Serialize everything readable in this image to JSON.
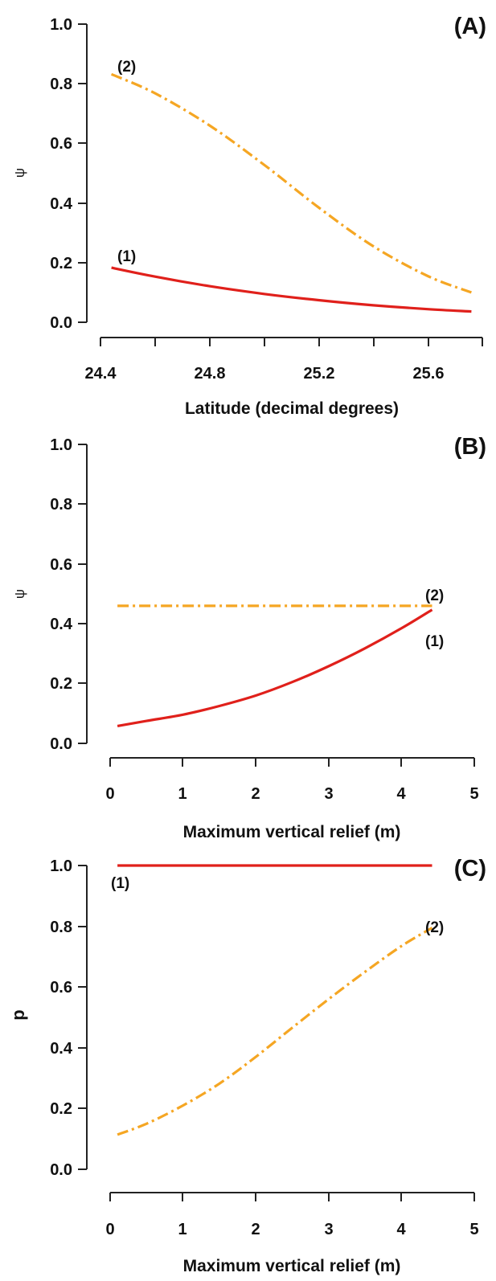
{
  "colors": {
    "series_1": "#e0201b",
    "series_2": "#f5a623",
    "ink": "#111111"
  },
  "chart_data": [
    {
      "type": "line",
      "panel_tag": "(A)",
      "xlabel": "Latitude (decimal degrees)",
      "ylabel": "ψ",
      "xlim": [
        24.4,
        25.8
      ],
      "ylim": [
        0.0,
        1.0
      ],
      "xticks": [
        24.4,
        24.6,
        24.8,
        25.0,
        25.2,
        25.4,
        25.6,
        25.8
      ],
      "xtick_labels": [
        "24.4",
        "",
        "24.8",
        "",
        "25.2",
        "",
        "25.6",
        ""
      ],
      "yticks": [
        0.0,
        0.2,
        0.4,
        0.6,
        0.8,
        1.0
      ],
      "ytick_labels": [
        "0.0",
        "0.2",
        "0.4",
        "0.6",
        "0.8",
        "1.0"
      ],
      "grid": false,
      "series": [
        {
          "label": "(1)",
          "color": "#e0201b",
          "style": "solid",
          "x": [
            24.44,
            24.6,
            24.8,
            25.0,
            25.2,
            25.4,
            25.6,
            25.76
          ],
          "y": [
            0.183,
            0.153,
            0.121,
            0.095,
            0.074,
            0.057,
            0.044,
            0.036
          ]
        },
        {
          "label": "(2)",
          "color": "#f5a623",
          "style": "dashdot",
          "x": [
            24.44,
            24.6,
            24.8,
            25.0,
            25.2,
            25.4,
            25.6,
            25.76
          ],
          "y": [
            0.832,
            0.768,
            0.66,
            0.528,
            0.385,
            0.255,
            0.155,
            0.1
          ]
        }
      ]
    },
    {
      "type": "line",
      "panel_tag": "(B)",
      "xlabel": "Maximum vertical relief (m)",
      "ylabel": "ψ",
      "xlim": [
        0,
        5
      ],
      "ylim": [
        0.0,
        1.0
      ],
      "xticks": [
        0,
        1,
        2,
        3,
        4,
        5
      ],
      "xtick_labels": [
        "0",
        "1",
        "2",
        "3",
        "4",
        "5"
      ],
      "yticks": [
        0.0,
        0.2,
        0.4,
        0.6,
        0.8,
        1.0
      ],
      "ytick_labels": [
        "0.0",
        "0.2",
        "0.4",
        "0.6",
        "0.8",
        "1.0"
      ],
      "grid": false,
      "series": [
        {
          "label": "(1)",
          "color": "#e0201b",
          "style": "solid",
          "x": [
            0.1,
            0.5,
            1.0,
            1.5,
            2.0,
            2.5,
            3.0,
            3.5,
            4.0,
            4.42
          ],
          "y": [
            0.058,
            0.075,
            0.096,
            0.125,
            0.16,
            0.205,
            0.258,
            0.318,
            0.385,
            0.447
          ]
        },
        {
          "label": "(2)",
          "color": "#f5a623",
          "style": "dashdot",
          "x": [
            0.1,
            4.42
          ],
          "y": [
            0.46,
            0.46
          ]
        }
      ]
    },
    {
      "type": "line",
      "panel_tag": "(C)",
      "xlabel": "Maximum vertical relief (m)",
      "ylabel": "p",
      "xlim": [
        0,
        5
      ],
      "ylim": [
        0.0,
        1.0
      ],
      "xticks": [
        0,
        1,
        2,
        3,
        4,
        5
      ],
      "xtick_labels": [
        "0",
        "1",
        "2",
        "3",
        "4",
        "5"
      ],
      "yticks": [
        0.0,
        0.2,
        0.4,
        0.6,
        0.8,
        1.0
      ],
      "ytick_labels": [
        "0.0",
        "0.2",
        "0.4",
        "0.6",
        "0.8",
        "1.0"
      ],
      "grid": false,
      "series": [
        {
          "label": "(1)",
          "color": "#e0201b",
          "style": "solid",
          "x": [
            0.1,
            4.42
          ],
          "y": [
            1.0,
            1.0
          ]
        },
        {
          "label": "(2)",
          "color": "#f5a623",
          "style": "dashdot",
          "x": [
            0.1,
            0.5,
            1.0,
            1.5,
            2.0,
            2.5,
            3.0,
            3.5,
            4.0,
            4.42
          ],
          "y": [
            0.114,
            0.15,
            0.21,
            0.282,
            0.37,
            0.466,
            0.56,
            0.65,
            0.735,
            0.795
          ]
        }
      ]
    }
  ]
}
